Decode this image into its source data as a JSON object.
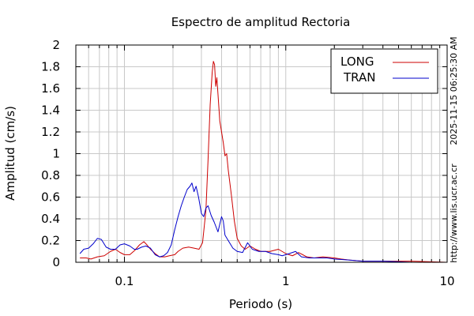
{
  "chart_data": {
    "type": "line",
    "title": "Espectro de amplitud Rectoria",
    "xlabel": "Periodo (s)",
    "ylabel": "Amplitud (cm/s)",
    "xscale": "log",
    "xlim": [
      0.05,
      10
    ],
    "ylim": [
      0,
      2
    ],
    "x_ticks": [
      0.1,
      1,
      10
    ],
    "x_tick_labels": [
      "0.1",
      "1",
      "10"
    ],
    "y_ticks": [
      0,
      0.2,
      0.4,
      0.6,
      0.8,
      1,
      1.2,
      1.4,
      1.6,
      1.8,
      2
    ],
    "y_tick_labels": [
      "0",
      "0.2",
      "0.4",
      "0.6",
      "0.8",
      "1",
      "1.2",
      "1.4",
      "1.6",
      "1.8",
      "2"
    ],
    "grid": true,
    "legend_position": "top-right",
    "side_text": [
      "2025-11-15 06:25:30 AM",
      "http://www.lis.ucr.ac.cr"
    ],
    "series": [
      {
        "name": "LONG",
        "color": "#cc0000",
        "points": [
          [
            0.053,
            0.04
          ],
          [
            0.058,
            0.04
          ],
          [
            0.062,
            0.03
          ],
          [
            0.068,
            0.05
          ],
          [
            0.075,
            0.06
          ],
          [
            0.082,
            0.1
          ],
          [
            0.088,
            0.12
          ],
          [
            0.094,
            0.09
          ],
          [
            0.1,
            0.07
          ],
          [
            0.108,
            0.07
          ],
          [
            0.116,
            0.11
          ],
          [
            0.124,
            0.16
          ],
          [
            0.132,
            0.19
          ],
          [
            0.138,
            0.16
          ],
          [
            0.145,
            0.12
          ],
          [
            0.155,
            0.08
          ],
          [
            0.165,
            0.05
          ],
          [
            0.178,
            0.05
          ],
          [
            0.19,
            0.06
          ],
          [
            0.205,
            0.07
          ],
          [
            0.215,
            0.1
          ],
          [
            0.23,
            0.13
          ],
          [
            0.25,
            0.14
          ],
          [
            0.27,
            0.13
          ],
          [
            0.29,
            0.12
          ],
          [
            0.305,
            0.18
          ],
          [
            0.32,
            0.48
          ],
          [
            0.33,
            0.95
          ],
          [
            0.34,
            1.45
          ],
          [
            0.35,
            1.75
          ],
          [
            0.356,
            1.85
          ],
          [
            0.362,
            1.82
          ],
          [
            0.368,
            1.62
          ],
          [
            0.374,
            1.7
          ],
          [
            0.38,
            1.55
          ],
          [
            0.39,
            1.3
          ],
          [
            0.4,
            1.2
          ],
          [
            0.41,
            1.1
          ],
          [
            0.42,
            0.98
          ],
          [
            0.43,
            1.0
          ],
          [
            0.44,
            0.85
          ],
          [
            0.46,
            0.62
          ],
          [
            0.48,
            0.38
          ],
          [
            0.5,
            0.22
          ],
          [
            0.53,
            0.15
          ],
          [
            0.56,
            0.12
          ],
          [
            0.6,
            0.15
          ],
          [
            0.65,
            0.12
          ],
          [
            0.7,
            0.1
          ],
          [
            0.8,
            0.1
          ],
          [
            0.9,
            0.12
          ],
          [
            1.0,
            0.08
          ],
          [
            1.1,
            0.06
          ],
          [
            1.2,
            0.09
          ],
          [
            1.35,
            0.05
          ],
          [
            1.5,
            0.04
          ],
          [
            1.7,
            0.05
          ],
          [
            2.0,
            0.04
          ],
          [
            2.2,
            0.03
          ],
          [
            2.5,
            0.02
          ],
          [
            3.0,
            0.01
          ],
          [
            4.0,
            0.01
          ],
          [
            6.0,
            0.01
          ],
          [
            10.0,
            0.0
          ]
        ]
      },
      {
        "name": "TRAN",
        "color": "#0000cc",
        "points": [
          [
            0.053,
            0.08
          ],
          [
            0.056,
            0.12
          ],
          [
            0.06,
            0.13
          ],
          [
            0.064,
            0.17
          ],
          [
            0.068,
            0.22
          ],
          [
            0.072,
            0.21
          ],
          [
            0.077,
            0.14
          ],
          [
            0.082,
            0.12
          ],
          [
            0.088,
            0.12
          ],
          [
            0.094,
            0.16
          ],
          [
            0.1,
            0.17
          ],
          [
            0.108,
            0.15
          ],
          [
            0.115,
            0.12
          ],
          [
            0.12,
            0.12
          ],
          [
            0.128,
            0.14
          ],
          [
            0.136,
            0.15
          ],
          [
            0.145,
            0.13
          ],
          [
            0.155,
            0.07
          ],
          [
            0.165,
            0.05
          ],
          [
            0.175,
            0.06
          ],
          [
            0.185,
            0.09
          ],
          [
            0.195,
            0.16
          ],
          [
            0.205,
            0.3
          ],
          [
            0.215,
            0.42
          ],
          [
            0.225,
            0.52
          ],
          [
            0.235,
            0.6
          ],
          [
            0.245,
            0.67
          ],
          [
            0.255,
            0.7
          ],
          [
            0.262,
            0.73
          ],
          [
            0.27,
            0.65
          ],
          [
            0.278,
            0.7
          ],
          [
            0.288,
            0.6
          ],
          [
            0.3,
            0.45
          ],
          [
            0.31,
            0.42
          ],
          [
            0.32,
            0.5
          ],
          [
            0.33,
            0.52
          ],
          [
            0.345,
            0.43
          ],
          [
            0.36,
            0.37
          ],
          [
            0.38,
            0.28
          ],
          [
            0.4,
            0.42
          ],
          [
            0.41,
            0.38
          ],
          [
            0.42,
            0.25
          ],
          [
            0.44,
            0.2
          ],
          [
            0.47,
            0.13
          ],
          [
            0.5,
            0.1
          ],
          [
            0.54,
            0.09
          ],
          [
            0.58,
            0.18
          ],
          [
            0.62,
            0.12
          ],
          [
            0.68,
            0.1
          ],
          [
            0.75,
            0.1
          ],
          [
            0.82,
            0.08
          ],
          [
            0.9,
            0.07
          ],
          [
            0.95,
            0.06
          ],
          [
            1.05,
            0.08
          ],
          [
            1.15,
            0.1
          ],
          [
            1.25,
            0.05
          ],
          [
            1.4,
            0.04
          ],
          [
            1.6,
            0.04
          ],
          [
            1.8,
            0.04
          ],
          [
            2.0,
            0.03
          ],
          [
            2.5,
            0.02
          ],
          [
            3.0,
            0.01
          ],
          [
            4.0,
            0.01
          ],
          [
            6.0,
            0.0
          ],
          [
            10.0,
            0.0
          ]
        ]
      }
    ]
  }
}
